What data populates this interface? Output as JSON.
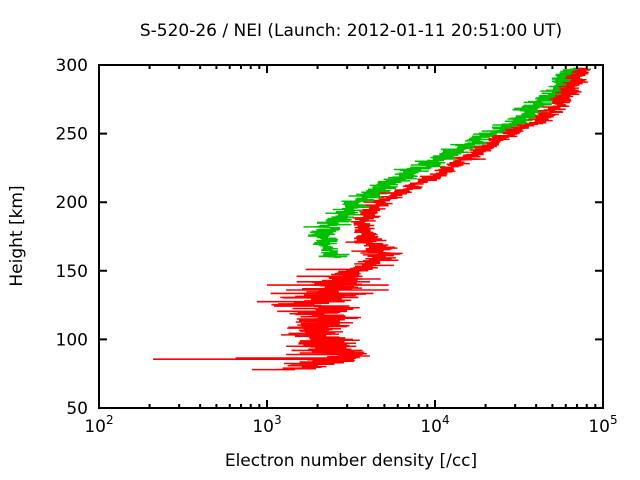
{
  "page": {
    "background": "#ffffff",
    "frame_color": "#000000"
  },
  "chart_data": {
    "type": "line",
    "title": "S-520-26 / NEI (Launch: 2012-01-11 20:51:00 UT)",
    "xlabel": "Electron number density [/cc]",
    "ylabel": "Height [km]",
    "grid": false,
    "legend": null,
    "x_axis": {
      "scale": "log",
      "min": 100,
      "max": 100000,
      "major_ticks": [
        {
          "value": 100,
          "base": "10",
          "exp": "2"
        },
        {
          "value": 1000,
          "base": "10",
          "exp": "3"
        },
        {
          "value": 10000,
          "base": "10",
          "exp": "4"
        },
        {
          "value": 100000,
          "base": "10",
          "exp": "5"
        }
      ],
      "minor_tick_multiples": [
        2,
        3,
        4,
        5,
        6,
        7,
        8,
        9
      ]
    },
    "y_axis": {
      "min": 50,
      "max": 300,
      "ticks": [
        50,
        100,
        150,
        200,
        250,
        300
      ]
    },
    "series": [
      {
        "name": "green-series",
        "color": "#00c000",
        "seed": 13,
        "profile": [
          [
            160,
            2600
          ],
          [
            163,
            2450
          ],
          [
            166,
            2350
          ],
          [
            170,
            2250
          ],
          [
            174,
            2200
          ],
          [
            178,
            2250
          ],
          [
            182,
            2350
          ],
          [
            186,
            2500
          ],
          [
            190,
            2700
          ],
          [
            194,
            3000
          ],
          [
            198,
            3300
          ],
          [
            202,
            3700
          ],
          [
            206,
            4200
          ],
          [
            210,
            4800
          ],
          [
            214,
            5500
          ],
          [
            218,
            6400
          ],
          [
            222,
            7400
          ],
          [
            226,
            8600
          ],
          [
            230,
            10000
          ],
          [
            234,
            11700
          ],
          [
            238,
            13800
          ],
          [
            242,
            16000
          ],
          [
            246,
            18500
          ],
          [
            250,
            21500
          ],
          [
            254,
            25000
          ],
          [
            258,
            30000
          ],
          [
            262,
            34500
          ],
          [
            266,
            37000
          ],
          [
            270,
            39500
          ],
          [
            274,
            44000
          ],
          [
            278,
            49000
          ],
          [
            282,
            53000
          ],
          [
            286,
            57000
          ],
          [
            290,
            60500
          ],
          [
            294,
            64000
          ],
          [
            298,
            67000
          ]
        ],
        "noise": [
          {
            "h0": 160,
            "h1": 175,
            "amp": 0.04,
            "bar": 0.055
          },
          {
            "h0": 175,
            "h1": 300,
            "amp": 0.05,
            "bar": 0.075
          }
        ],
        "spikes": [
          [
            160.4,
            2050,
            3000
          ],
          [
            161.8,
            2150,
            3100
          ]
        ]
      },
      {
        "name": "red-series",
        "color": "#ff0000",
        "seed": 7,
        "profile": [
          [
            78,
            1400
          ],
          [
            80,
            1700
          ],
          [
            83,
            1900
          ],
          [
            85,
            2000
          ],
          [
            86,
            2600
          ],
          [
            88,
            2900
          ],
          [
            90,
            2400
          ],
          [
            93,
            2300
          ],
          [
            96,
            2100
          ],
          [
            99,
            2400
          ],
          [
            102,
            2100
          ],
          [
            105,
            1900
          ],
          [
            108,
            1800
          ],
          [
            111,
            2000
          ],
          [
            114,
            2200
          ],
          [
            117,
            2100
          ],
          [
            120,
            1900
          ],
          [
            123,
            2100
          ],
          [
            126,
            1700
          ],
          [
            129,
            1900
          ],
          [
            132,
            2300
          ],
          [
            135,
            2100
          ],
          [
            138,
            2500
          ],
          [
            141,
            2700
          ],
          [
            144,
            2900
          ],
          [
            147,
            3100
          ],
          [
            150,
            3300
          ],
          [
            153,
            3800
          ],
          [
            156,
            4300
          ],
          [
            159,
            4700
          ],
          [
            162,
            4900
          ],
          [
            165,
            4700
          ],
          [
            168,
            4400
          ],
          [
            172,
            4100
          ],
          [
            176,
            3900
          ],
          [
            180,
            3700
          ],
          [
            184,
            3650
          ],
          [
            188,
            3800
          ],
          [
            192,
            4100
          ],
          [
            196,
            4400
          ],
          [
            200,
            4900
          ],
          [
            204,
            5500
          ],
          [
            208,
            6400
          ],
          [
            212,
            7400
          ],
          [
            216,
            8600
          ],
          [
            220,
            10500
          ],
          [
            224,
            12000
          ],
          [
            228,
            13500
          ],
          [
            232,
            15500
          ],
          [
            236,
            17500
          ],
          [
            240,
            20000
          ],
          [
            244,
            22500
          ],
          [
            248,
            26000
          ],
          [
            252,
            30500
          ],
          [
            256,
            35000
          ],
          [
            260,
            42000
          ],
          [
            264,
            47000
          ],
          [
            268,
            51000
          ],
          [
            272,
            55000
          ],
          [
            276,
            58500
          ],
          [
            280,
            62000
          ],
          [
            284,
            65000
          ],
          [
            288,
            68500
          ],
          [
            292,
            71000
          ],
          [
            296,
            74000
          ],
          [
            298,
            75500
          ]
        ],
        "noise": [
          {
            "h0": 78,
            "h1": 145,
            "amp": 0.11,
            "bar": 0.13
          },
          {
            "h0": 145,
            "h1": 175,
            "amp": 0.05,
            "bar": 0.08
          },
          {
            "h0": 175,
            "h1": 300,
            "amp": 0.035,
            "bar": 0.055
          }
        ],
        "spikes": [
          [
            85.6,
            210,
            3300
          ],
          [
            86.4,
            650,
            3200
          ],
          [
            89.0,
            1300,
            3700
          ],
          [
            92.0,
            1400,
            3700
          ],
          [
            95.0,
            1600,
            3400
          ],
          [
            110.0,
            1600,
            3100
          ],
          [
            120.5,
            1150,
            3000
          ],
          [
            124.3,
            1100,
            3100
          ],
          [
            127.5,
            870,
            2900
          ],
          [
            130.6,
            1200,
            3500
          ],
          [
            133.5,
            1050,
            4300
          ],
          [
            136.0,
            1300,
            5300
          ],
          [
            139.6,
            1000,
            5300
          ],
          [
            142.0,
            1500,
            4100
          ],
          [
            146.0,
            1500,
            3700
          ],
          [
            151.0,
            1700,
            3700
          ],
          [
            163.0,
            3600,
            5400
          ]
        ]
      }
    ]
  }
}
